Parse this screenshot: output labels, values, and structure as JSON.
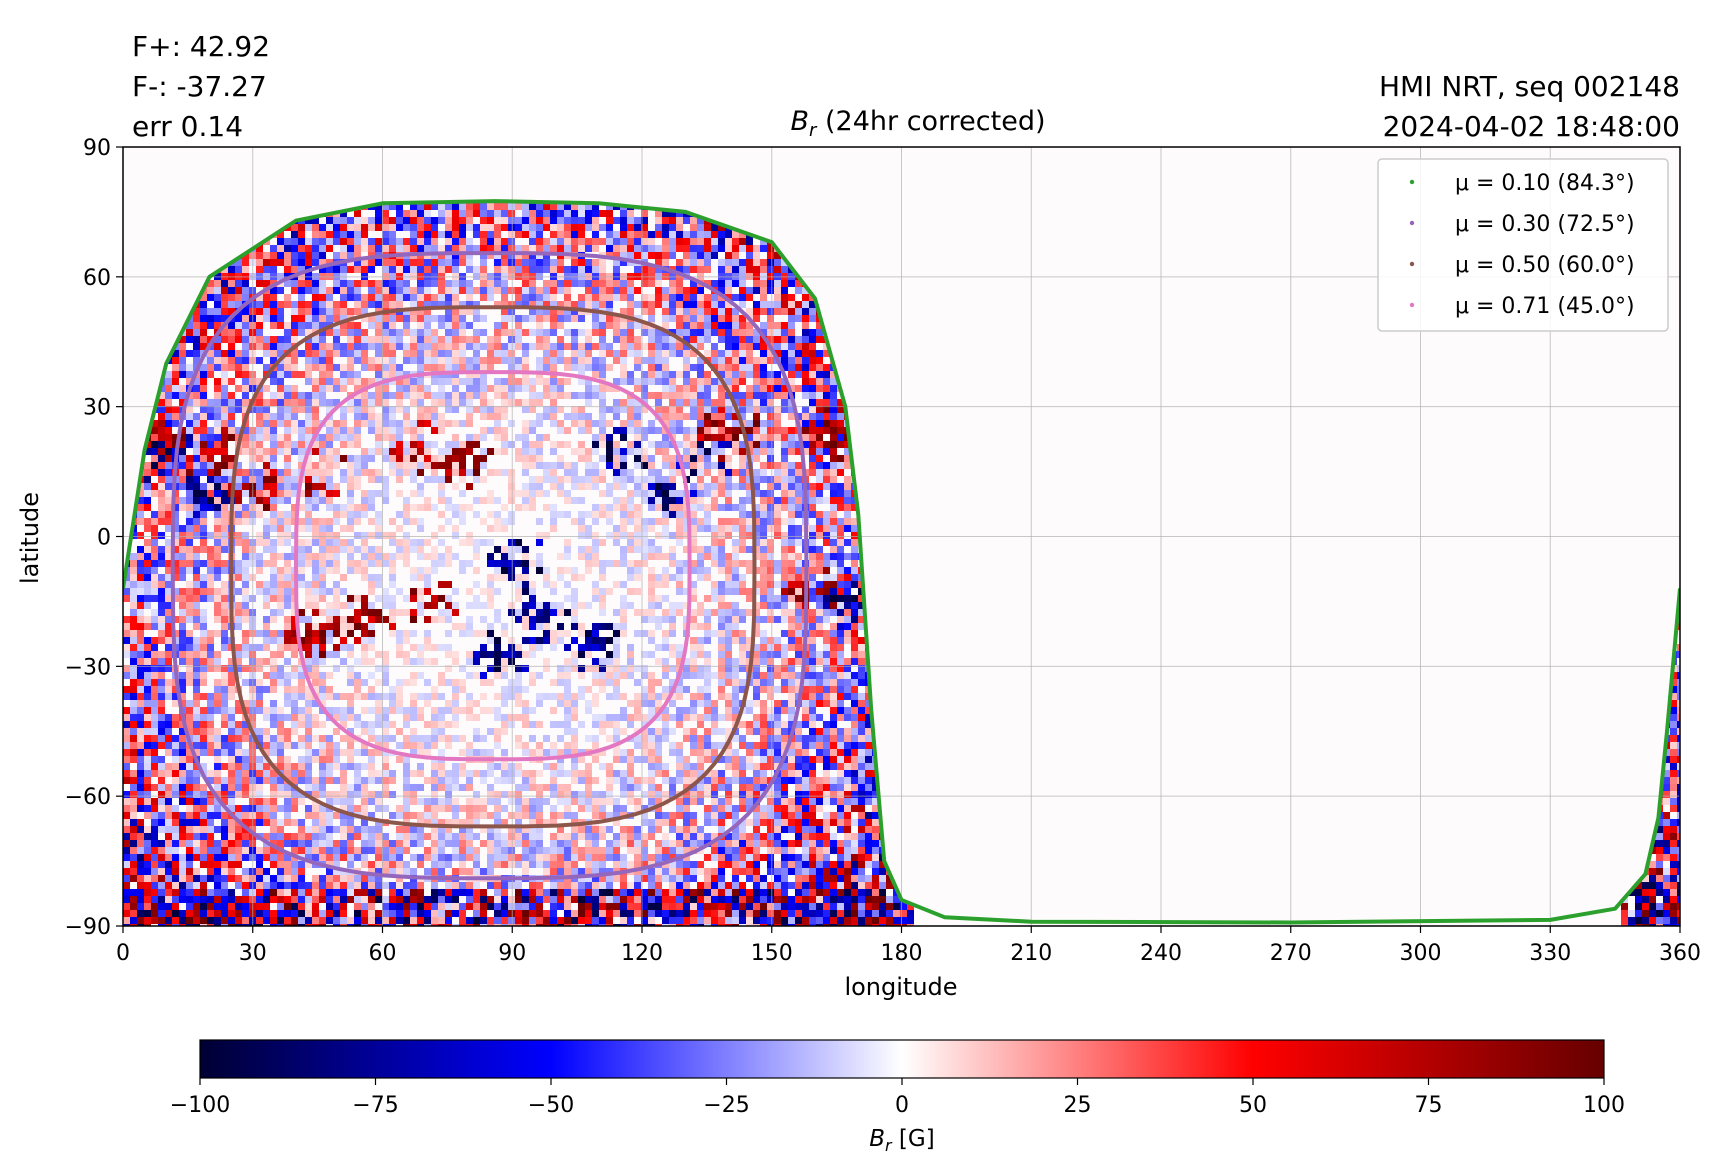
{
  "header": {
    "stats": [
      "F+: 42.92",
      "F-: -37.27",
      "err 0.14"
    ],
    "source_line": "HMI NRT, seq 002148",
    "timestamp": "2024-04-02 18:48:00"
  },
  "chart_data": {
    "type": "heatmap",
    "title_main": "B",
    "title_sub": "r",
    "title_rest": " (24hr corrected)",
    "xlabel": "longitude",
    "ylabel": "latitude",
    "xlim": [
      0,
      360
    ],
    "ylim": [
      -90,
      90
    ],
    "xticks": [
      0,
      30,
      60,
      90,
      120,
      150,
      180,
      210,
      240,
      270,
      300,
      330,
      360
    ],
    "yticks": [
      -90,
      -60,
      -30,
      0,
      30,
      60,
      90
    ],
    "grid": true,
    "legend_position": "top-right",
    "disk_center": {
      "lon": 86,
      "lat": -13
    },
    "limb_boundary": {
      "name": "μ = 0.10 (84.3°)",
      "color": "#2ca02c",
      "points": [
        [
          0,
          -12
        ],
        [
          5,
          20
        ],
        [
          10,
          40
        ],
        [
          20,
          60
        ],
        [
          40,
          73
        ],
        [
          60,
          77
        ],
        [
          86,
          77.5
        ],
        [
          110,
          77
        ],
        [
          130,
          75
        ],
        [
          150,
          68
        ],
        [
          160,
          55
        ],
        [
          167,
          30
        ],
        [
          170,
          5
        ],
        [
          173,
          -40
        ],
        [
          176,
          -75
        ],
        [
          180,
          -84
        ],
        [
          190,
          -88
        ],
        [
          210,
          -89
        ],
        [
          270,
          -89.2
        ],
        [
          330,
          -88.6
        ],
        [
          345,
          -86
        ],
        [
          352,
          -78
        ],
        [
          355,
          -65
        ],
        [
          357,
          -45
        ],
        [
          360,
          -12
        ]
      ]
    },
    "series": [
      {
        "mu": "0.30",
        "angle": "72.5°",
        "color": "#9467bd",
        "lat_top": 65.5,
        "lat_bottom": -79,
        "lon_left": 11.5,
        "lon_right": 158
      },
      {
        "mu": "0.50",
        "angle": "60.0°",
        "color": "#8c564b",
        "lat_top": 53,
        "lat_bottom": -67,
        "lon_left": 25,
        "lon_right": 146
      },
      {
        "mu": "0.71",
        "angle": "45.0°",
        "color": "#e377c2",
        "lat_top": 38,
        "lat_bottom": -51.5,
        "lon_left": 40,
        "lon_right": 131
      }
    ],
    "legend": [
      {
        "label": "μ = 0.10 (84.3°)",
        "color": "#2ca02c"
      },
      {
        "label": "μ = 0.30 (72.5°)",
        "color": "#9467bd"
      },
      {
        "label": "μ = 0.50 (60.0°)",
        "color": "#8c564b"
      },
      {
        "label": "μ = 0.71 (45.0°)",
        "color": "#e377c2"
      }
    ],
    "magnetic_regions": [
      {
        "lon": 8,
        "lat": 20,
        "polarity": "negative",
        "strength": 0.9
      },
      {
        "lon": 18,
        "lat": 10,
        "polarity": "negative",
        "strength": 0.8
      },
      {
        "lon": 7,
        "lat": 25,
        "polarity": "positive",
        "strength": 0.8
      },
      {
        "lon": 20,
        "lat": 20,
        "polarity": "positive",
        "strength": 0.8
      },
      {
        "lon": 30,
        "lat": 12,
        "polarity": "positive",
        "strength": 0.6
      },
      {
        "lon": 45,
        "lat": 15,
        "polarity": "positive",
        "strength": 0.6
      },
      {
        "lon": 42,
        "lat": -22,
        "polarity": "positive",
        "strength": 0.9
      },
      {
        "lon": 55,
        "lat": -18,
        "polarity": "positive",
        "strength": 0.7
      },
      {
        "lon": 70,
        "lat": -14,
        "polarity": "positive",
        "strength": 0.7
      },
      {
        "lon": 68,
        "lat": 22,
        "polarity": "positive",
        "strength": 0.5
      },
      {
        "lon": 78,
        "lat": 18,
        "polarity": "positive",
        "strength": 0.5
      },
      {
        "lon": 90,
        "lat": -5,
        "polarity": "negative",
        "strength": 0.7
      },
      {
        "lon": 95,
        "lat": -18,
        "polarity": "negative",
        "strength": 0.9
      },
      {
        "lon": 85,
        "lat": -27,
        "polarity": "negative",
        "strength": 0.6
      },
      {
        "lon": 108,
        "lat": -25,
        "polarity": "negative",
        "strength": 0.8
      },
      {
        "lon": 115,
        "lat": 20,
        "polarity": "negative",
        "strength": 0.5
      },
      {
        "lon": 125,
        "lat": 12,
        "polarity": "negative",
        "strength": 0.5
      },
      {
        "lon": 140,
        "lat": 25,
        "polarity": "positive",
        "strength": 0.9
      },
      {
        "lon": 135,
        "lat": 20,
        "polarity": "negative",
        "strength": 0.5
      },
      {
        "lon": 163,
        "lat": 25,
        "polarity": "positive",
        "strength": 0.9
      },
      {
        "lon": 168,
        "lat": -15,
        "polarity": "negative",
        "strength": 0.6
      },
      {
        "lon": 160,
        "lat": -12,
        "polarity": "positive",
        "strength": 0.6
      }
    ],
    "colorbar": {
      "label_main": "B",
      "label_sub": "r",
      "label_unit": " [G]",
      "ticks": [
        "−100",
        "−75",
        "−50",
        "−25",
        "0",
        "25",
        "50",
        "75",
        "100"
      ],
      "stops": [
        {
          "value": -100,
          "color": "#000033"
        },
        {
          "value": -50,
          "color": "#0000ff"
        },
        {
          "value": 0,
          "color": "#ffffff"
        },
        {
          "value": 50,
          "color": "#ff0000"
        },
        {
          "value": 100,
          "color": "#660000"
        }
      ]
    }
  }
}
